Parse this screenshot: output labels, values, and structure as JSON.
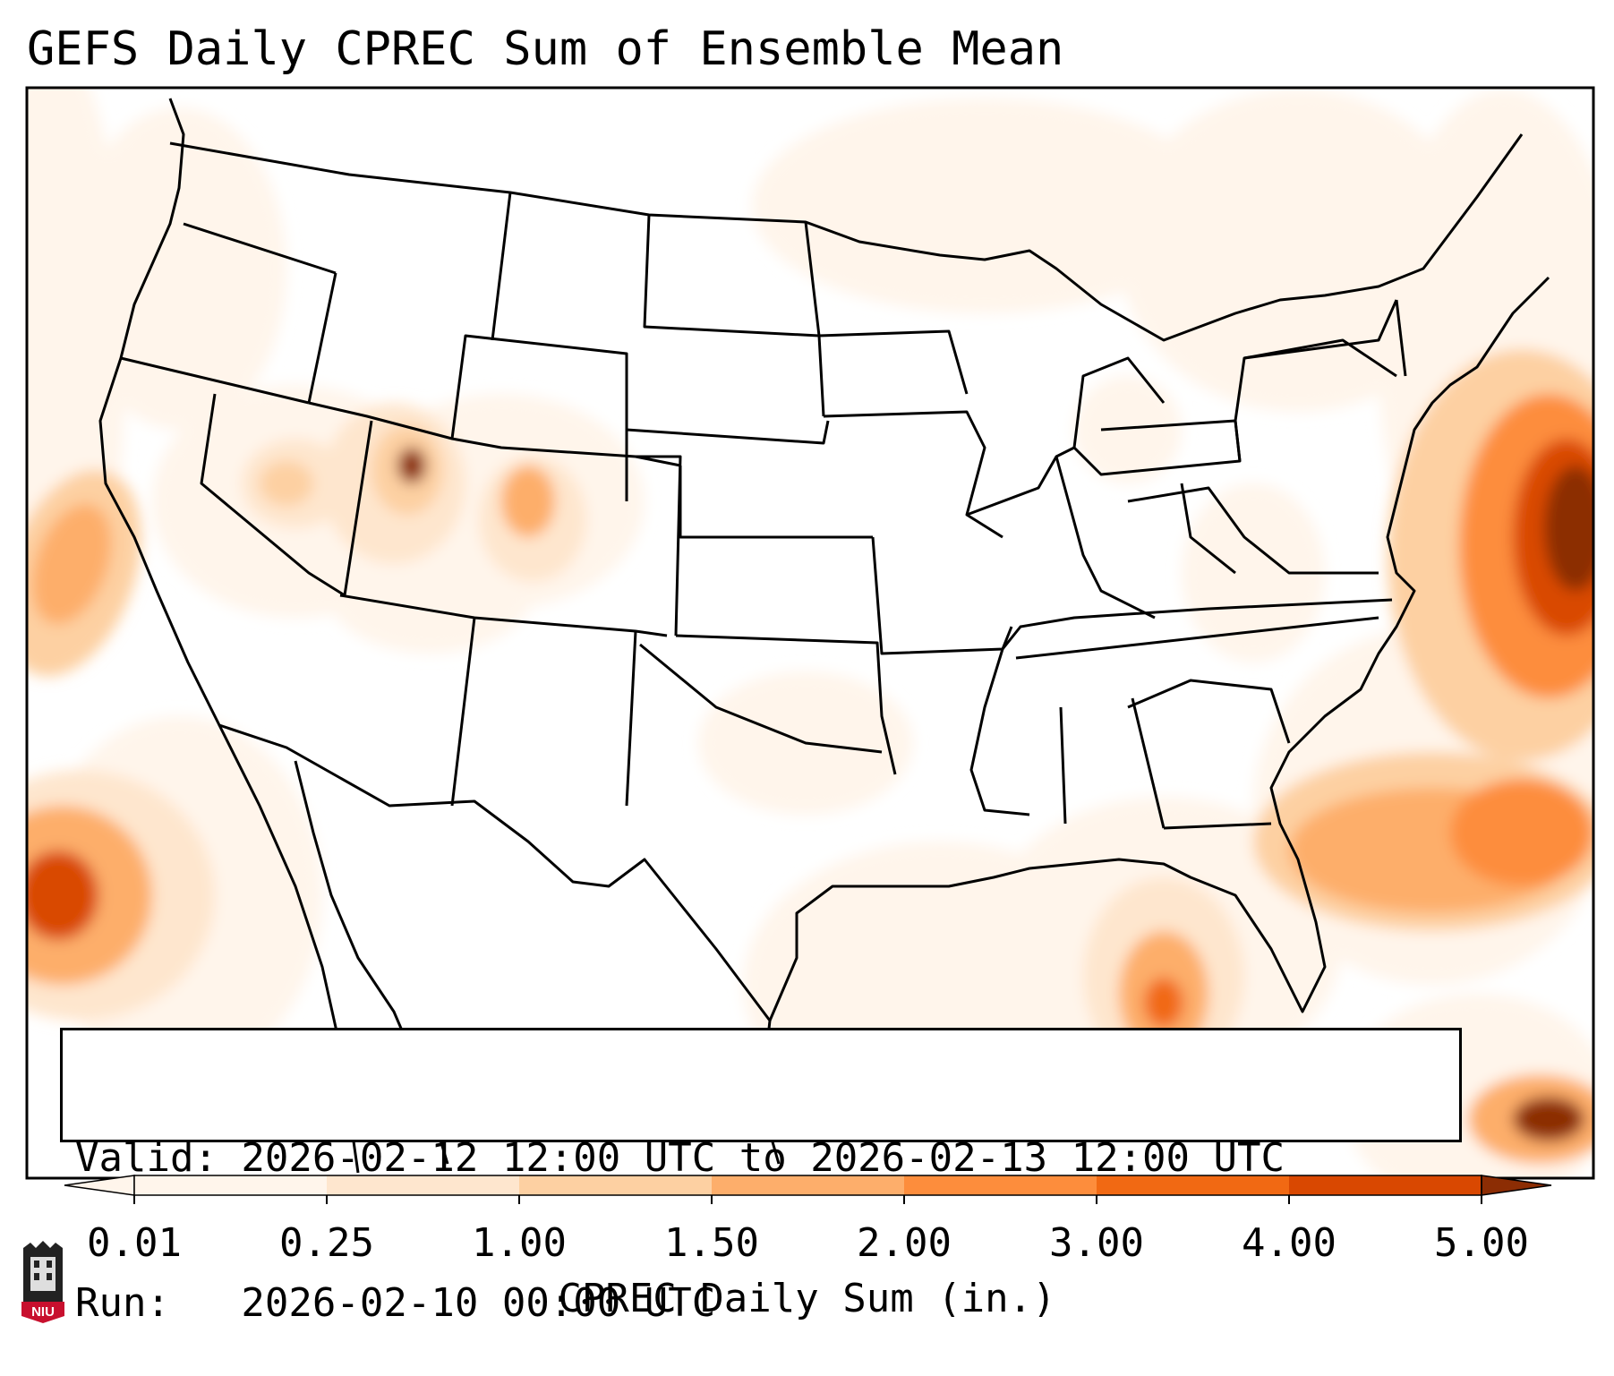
{
  "title": "GEFS Daily CPREC Sum of Ensemble Mean",
  "valid_text": "Valid: 2026-02-12 12:00 UTC to 2026-02-13 12:00 UTC",
  "run_text": "Run:   2026-02-10 00:00 UTC",
  "colorbar": {
    "label": "CPREC Daily Sum (in.)",
    "ticks": [
      "0.01",
      "0.25",
      "1.00",
      "1.50",
      "2.00",
      "3.00",
      "4.00",
      "5.00"
    ],
    "colors": [
      "#fff5eb",
      "#fee6ce",
      "#fdd0a2",
      "#fdae6b",
      "#fd8d3c",
      "#f16913",
      "#d94801",
      "#8c2d04"
    ]
  },
  "logo": {
    "text": "NIU",
    "icon": "niu-seal-icon",
    "color": "#c8102e"
  },
  "map": {
    "region": "Contiguous United States",
    "precip_maxima": [
      {
        "area": "Northern Utah",
        "level": "5.00"
      },
      {
        "area": "Atlantic east of the Mid-Atlantic coast",
        "level": "5.00"
      },
      {
        "area": "Pacific west of Baja California",
        "level": "4.00"
      },
      {
        "area": "Atlantic southeast of the Carolinas",
        "level": "3.00"
      },
      {
        "area": "Gulf of Mexico",
        "level": "3.00"
      },
      {
        "area": "Caribbean near Hispaniola",
        "level": "5.00"
      }
    ]
  }
}
